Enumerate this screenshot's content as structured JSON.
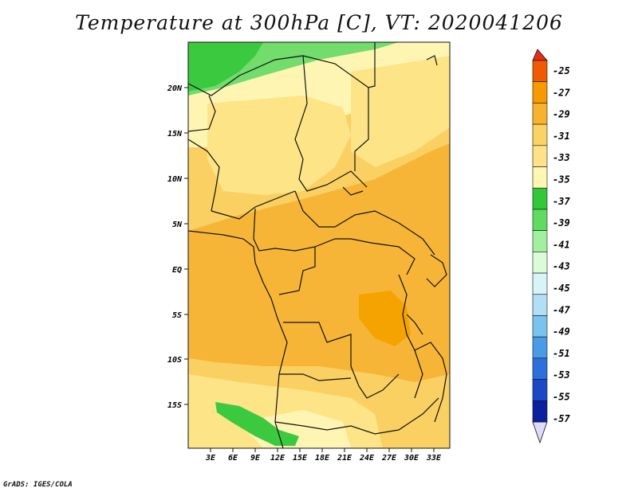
{
  "title": "Temperature at 300hPa [C], VT: 2020041206",
  "footer": "GrADS: IGES/COLA",
  "lat_labels": [
    "20N",
    "15N",
    "10N",
    "5N",
    "EQ",
    "5S",
    "10S",
    "15S"
  ],
  "lon_labels": [
    "3E",
    "6E",
    "9E",
    "12E",
    "15E",
    "18E",
    "21E",
    "24E",
    "27E",
    "30E",
    "33E"
  ],
  "colorbar": {
    "labels": [
      "-25",
      "-27",
      "-29",
      "-31",
      "-33",
      "-35",
      "-37",
      "-39",
      "-41",
      "-43",
      "-45",
      "-47",
      "-49",
      "-51",
      "-53",
      "-55",
      "-57"
    ],
    "colors": [
      "#f05a00",
      "#f59a00",
      "#f7b22e",
      "#fad365",
      "#fde28a",
      "#fff6b4",
      "#33c83b",
      "#5fdb5f",
      "#a2f09d",
      "#dcfcd9",
      "#d8f4f8",
      "#b1dff5",
      "#7ac3ee",
      "#4a9be6",
      "#2e6fdc",
      "#1b49c6",
      "#0c1f9e"
    ],
    "top_color": "#e42d16",
    "bottom_color": "#dedcfb"
  },
  "field_colors": {
    "t27": "#f5a300",
    "t29": "#f7b538",
    "t31": "#fad063",
    "t33": "#fde487",
    "t35": "#fff5b2",
    "t37": "#3bc940",
    "t39": "#72dc6d"
  }
}
